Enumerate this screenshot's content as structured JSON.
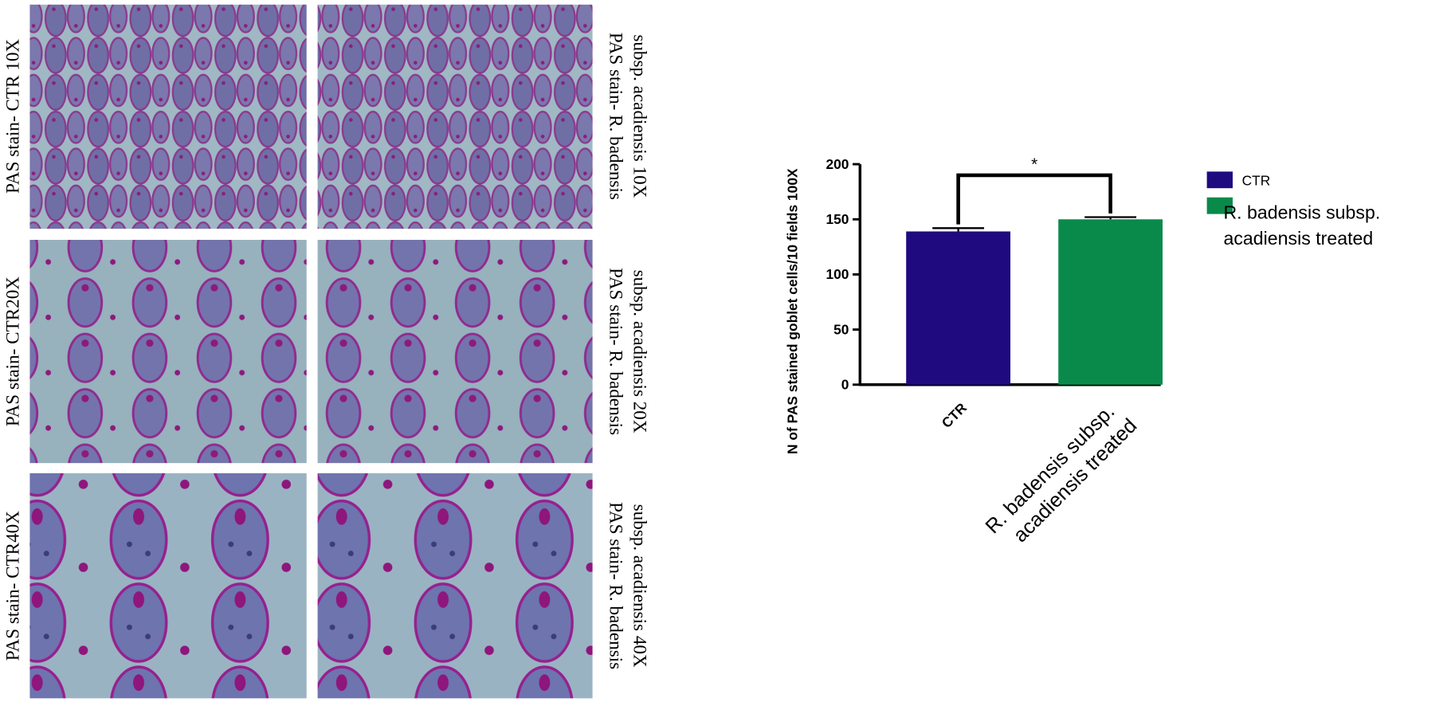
{
  "panels": {
    "left_labels": [
      "PAS stain- CTR 10X",
      "PAS stain- CTR20X",
      "PAS stain- CTR40X"
    ],
    "right_labels": [
      [
        "PAS stain- R. badensis",
        "subsp. acadiensis 10X"
      ],
      [
        "PAS stain- R. badensis",
        "subsp. acadiensis 20X"
      ],
      [
        "PAS stain- R. badensis",
        "subsp. acadiensis 40X"
      ]
    ]
  },
  "chart_data": {
    "type": "bar",
    "ylabel": "N of PAS stained goblet cells/10 fields 100X",
    "categories": [
      "CTR",
      "R. badensis subsp. acadiensis treated"
    ],
    "series": [
      {
        "name": "CTR",
        "color": "#1f0a80"
      },
      {
        "name": "R. badensis subsp. acadiensis treated",
        "color": "#0a8a4a"
      }
    ],
    "values": [
      139,
      150
    ],
    "errors": [
      3,
      2
    ],
    "ylim": [
      0,
      200
    ],
    "yticks": [
      0,
      50,
      100,
      150,
      200
    ],
    "annotation": "*",
    "legend": "right"
  }
}
